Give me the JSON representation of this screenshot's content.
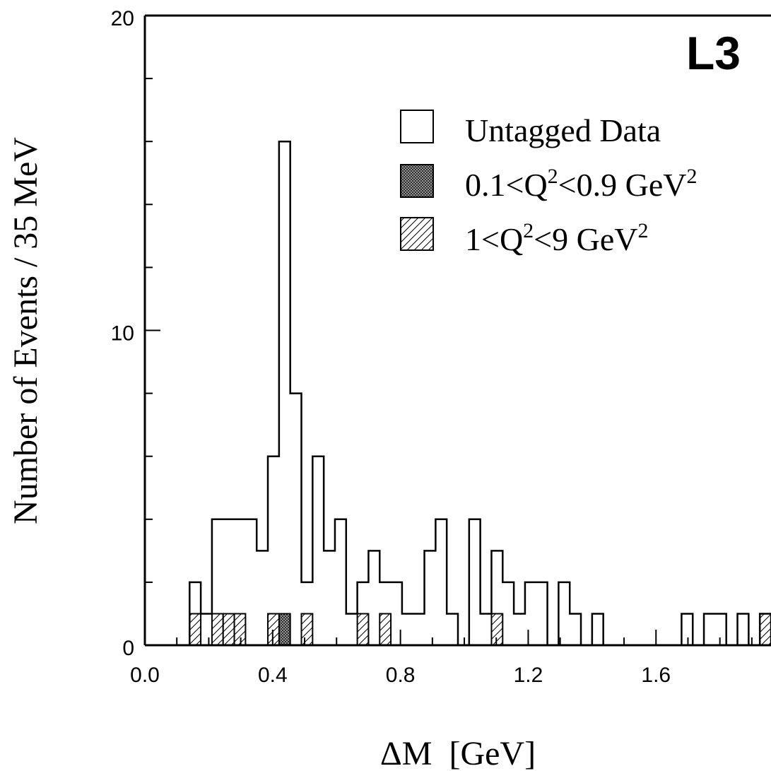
{
  "chart_data": {
    "type": "bar",
    "bin_width": 0.035,
    "x_start": 0.14,
    "xlim": [
      0.0,
      1.96
    ],
    "ylim": [
      0,
      20
    ],
    "xlabel": "ΔM  [GeV]",
    "ylabel": "Number of Events / 35 MeV",
    "experiment_label": "L3",
    "x_tick_labels": [
      "0.0",
      "0.4",
      "0.8",
      "1.2",
      "1.6"
    ],
    "x_tick_values": [
      0.0,
      0.4,
      0.8,
      1.2,
      1.6
    ],
    "y_tick_labels": [
      "0",
      "10",
      "20"
    ],
    "y_tick_values": [
      0,
      10,
      20
    ],
    "legend_placement": "top-right",
    "series": [
      {
        "name": "Untagged Data",
        "style": "open",
        "values": [
          2,
          1,
          4,
          4,
          4,
          4,
          3,
          6,
          16,
          8,
          2,
          6,
          3,
          4,
          1,
          2,
          3,
          2,
          2,
          1,
          1,
          3,
          4,
          1,
          0,
          4,
          1,
          3,
          2,
          1,
          2,
          2,
          0,
          2,
          1,
          0,
          1,
          0,
          0,
          0,
          0,
          0,
          0,
          0,
          1,
          0,
          1,
          1,
          0,
          1,
          0,
          1,
          0
        ]
      },
      {
        "name": "0.1<Q²<0.9 GeV²",
        "legend_main": "0.1<Q",
        "legend_mid": "<0.9 GeV",
        "legend_sup": "2",
        "style": "crosshatch",
        "values": [
          0,
          0,
          0,
          0,
          0,
          0,
          0,
          0,
          1,
          0,
          0,
          0,
          0,
          0,
          0,
          0,
          0,
          0,
          0,
          0,
          0,
          0,
          0,
          0,
          0,
          0,
          0,
          0,
          0,
          0,
          0,
          0,
          0,
          0,
          0,
          0,
          0,
          0,
          0,
          0,
          0,
          0,
          0,
          0,
          0,
          0,
          0,
          0,
          0,
          0,
          0,
          0,
          0
        ]
      },
      {
        "name": "1<Q²<9 GeV²",
        "legend_main": "1<Q",
        "legend_mid": "<9 GeV",
        "legend_sup": "2",
        "style": "hatched",
        "values": [
          1,
          0,
          1,
          1,
          1,
          0,
          0,
          1,
          0,
          0,
          1,
          0,
          0,
          0,
          0,
          1,
          0,
          1,
          0,
          0,
          0,
          0,
          0,
          0,
          0,
          0,
          0,
          1,
          0,
          0,
          0,
          0,
          0,
          0,
          0,
          0,
          0,
          0,
          0,
          0,
          0,
          0,
          0,
          0,
          0,
          0,
          0,
          0,
          0,
          0,
          0,
          1,
          0
        ]
      }
    ]
  }
}
